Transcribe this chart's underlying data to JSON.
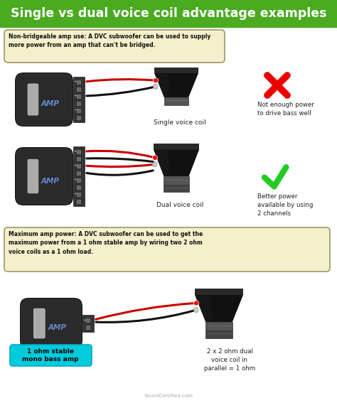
{
  "title": "Single vs dual voice coil advantage examples",
  "title_color": "#ffffff",
  "title_bg": "#4aaa20",
  "box1_text": "Non-bridgeable amp use: A DVC subwoofer can be used to supply\nmore power from an amp that can't be bridged.",
  "box2_text": "Maximum amp power: A DVC subwoofer can be used to get the\nmaximum power from a 1 ohm stable amp by wiring two 2 ohm\nvoice coils as a 1 ohm load.",
  "label_svc": "Single voice coil",
  "label_dvc": "Dual voice coil",
  "label_not_enough": "Not enough power\nto drive bass well",
  "label_better": "Better power\navailable by using\n2 channels",
  "label_1ohm": "1 ohm stable\nmono bass amp",
  "label_2x2ohm": "2 x 2 ohm dual\nvoice coil in\nparallel = 1 ohm",
  "label_soundcertified": "SoundCertified.com",
  "bg_color": "#ffffff",
  "amp_color": "#1a1a1a",
  "amp_label_color": "#6688cc",
  "wire_red": "#cc0000",
  "wire_black": "#111111",
  "speaker_dark": "#1a1a1a",
  "speaker_mid": "#404040",
  "speaker_light": "#666666",
  "terminal_color": "#444444",
  "cross_color": "#ee0000",
  "check_color": "#22cc22",
  "box_bg": "#f5f0cc",
  "box_border": "#999966",
  "cyan_bg": "#00ccdd",
  "term_box_color": "#333333",
  "term_dot_color": "#888888"
}
